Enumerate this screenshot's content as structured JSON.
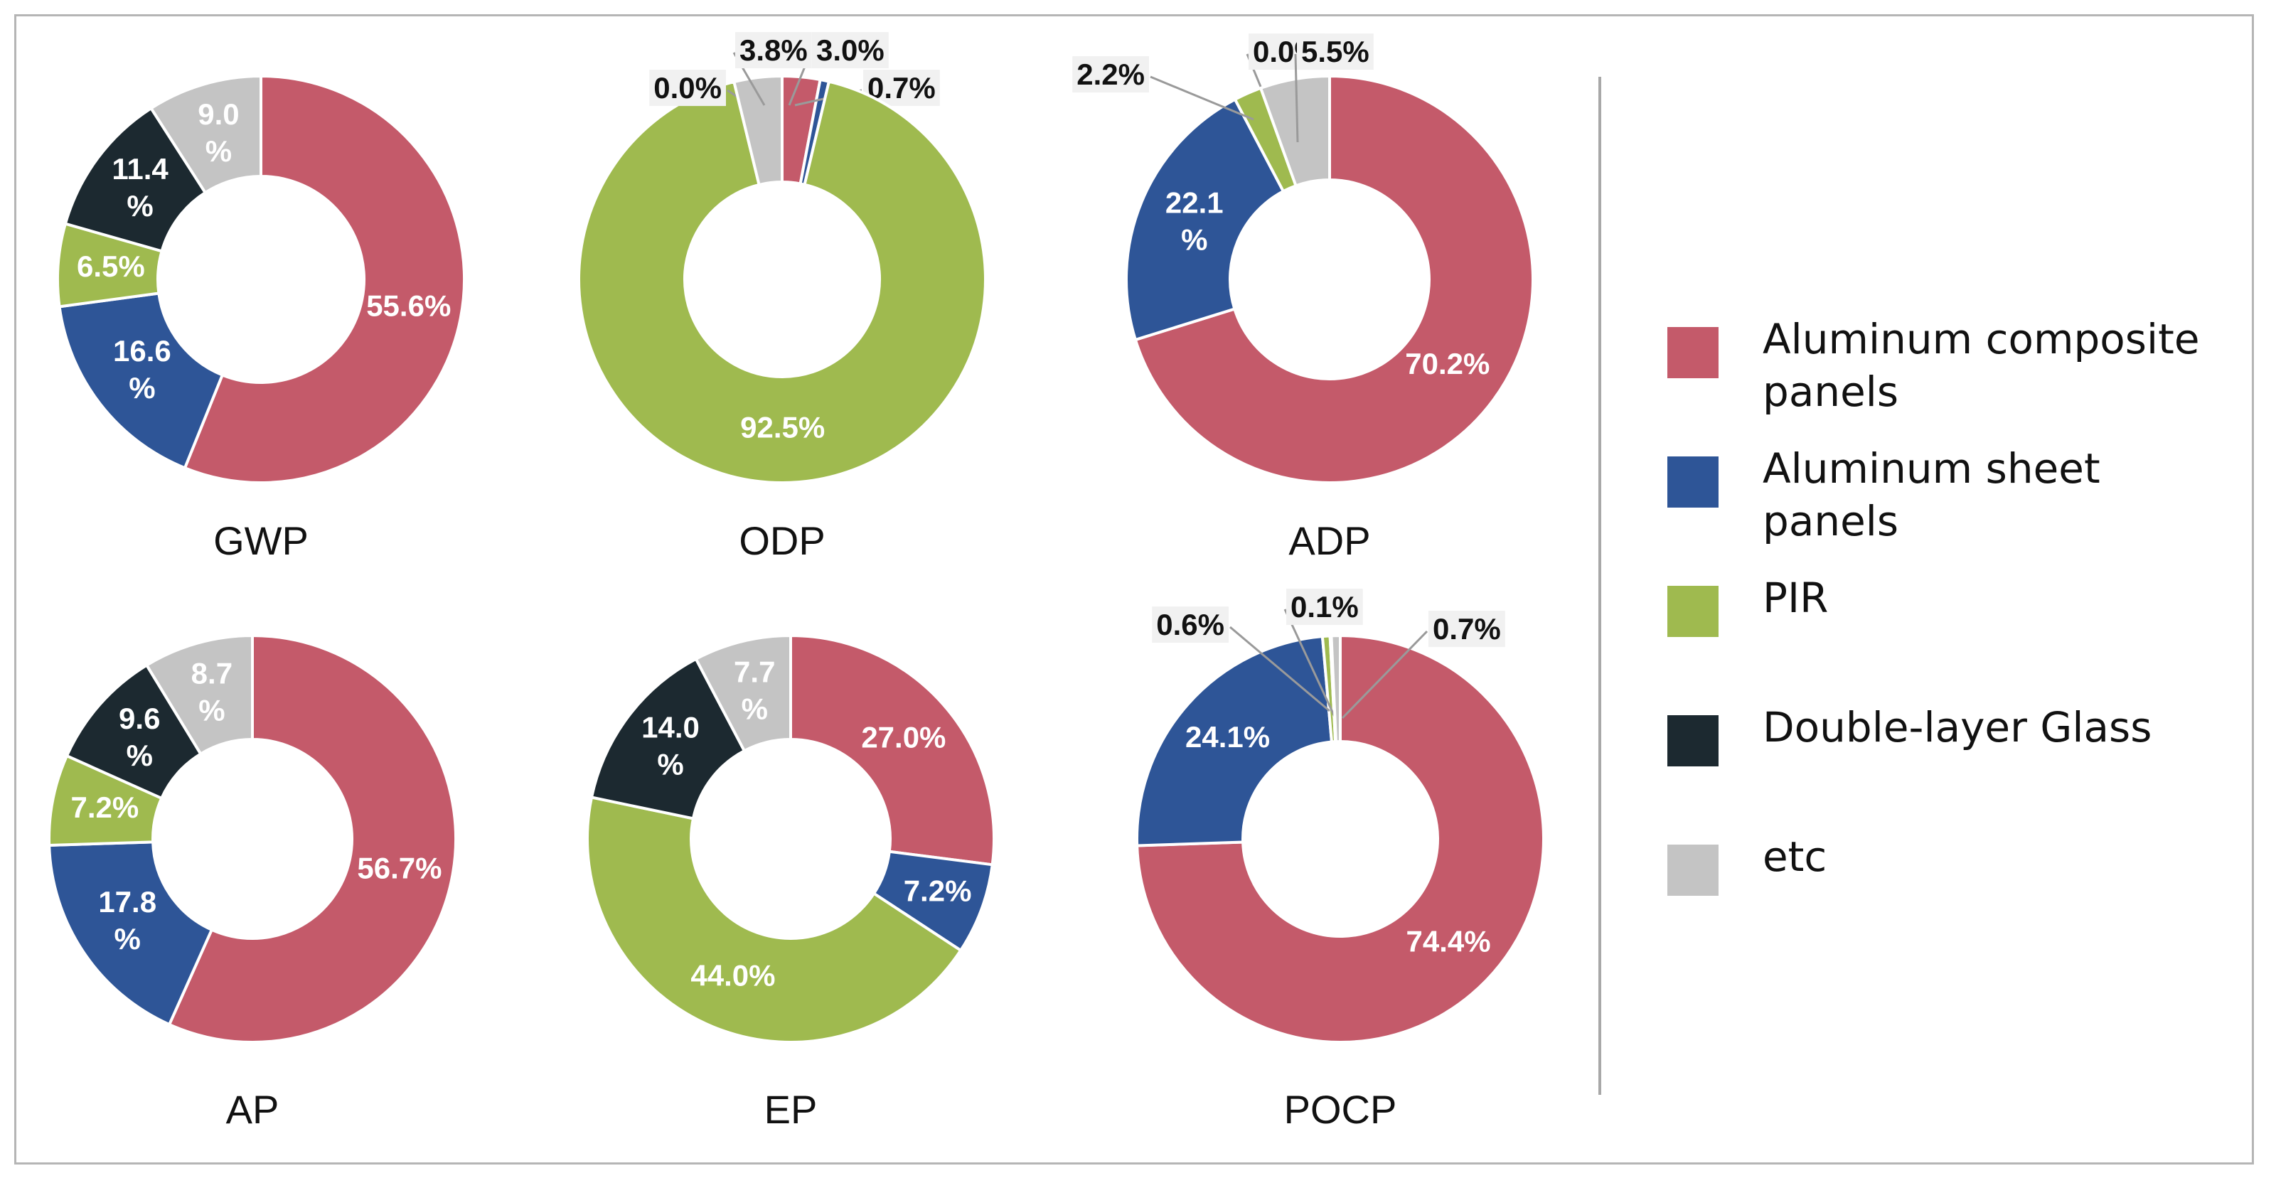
{
  "legend": {
    "items": [
      {
        "label": "Aluminum composite panels",
        "color": "#c45a6a"
      },
      {
        "label": "Aluminum sheet panels",
        "color": "#2e5597"
      },
      {
        "label": "PIR",
        "color": "#9fba4f"
      },
      {
        "label": "Double-layer Glass",
        "color": "#1c2930"
      },
      {
        "label": "etc",
        "color": "#c4c4c4"
      }
    ]
  },
  "chart_data": [
    {
      "type": "pie",
      "title": "GWP",
      "series": [
        {
          "name": "Aluminum composite panels",
          "value": 55.6,
          "label": "55.6%"
        },
        {
          "name": "Aluminum sheet panels",
          "value": 16.6,
          "label": "16.6 %"
        },
        {
          "name": "PIR",
          "value": 6.5,
          "label": "6.5%"
        },
        {
          "name": "Double-layer Glass",
          "value": 11.4,
          "label": "11.4 %"
        },
        {
          "name": "etc",
          "value": 9.0,
          "label": "9.0 %"
        }
      ]
    },
    {
      "type": "pie",
      "title": "ODP",
      "series": [
        {
          "name": "Aluminum composite panels",
          "value": 3.0,
          "label": "3.0%"
        },
        {
          "name": "Aluminum sheet panels",
          "value": 0.7,
          "label": "0.7%"
        },
        {
          "name": "PIR",
          "value": 92.5,
          "label": "92.5%"
        },
        {
          "name": "Double-layer Glass",
          "value": 0.0,
          "label": "0.0%"
        },
        {
          "name": "etc",
          "value": 3.8,
          "label": "3.8%"
        }
      ]
    },
    {
      "type": "pie",
      "title": "ADP",
      "series": [
        {
          "name": "Aluminum composite panels",
          "value": 70.2,
          "label": "70.2%"
        },
        {
          "name": "Aluminum sheet panels",
          "value": 22.1,
          "label": "22.1 %"
        },
        {
          "name": "PIR",
          "value": 2.2,
          "label": "2.2%"
        },
        {
          "name": "Double-layer Glass",
          "value": 0.0,
          "label": "0.0%"
        },
        {
          "name": "etc",
          "value": 5.5,
          "label": "5.5%"
        }
      ]
    },
    {
      "type": "pie",
      "title": "AP",
      "series": [
        {
          "name": "Aluminum composite panels",
          "value": 56.7,
          "label": "56.7%"
        },
        {
          "name": "Aluminum sheet panels",
          "value": 17.8,
          "label": "17.8 %"
        },
        {
          "name": "PIR",
          "value": 7.2,
          "label": "7.2%"
        },
        {
          "name": "Double-layer Glass",
          "value": 9.6,
          "label": "9.6 %"
        },
        {
          "name": "etc",
          "value": 8.7,
          "label": "8.7 %"
        }
      ]
    },
    {
      "type": "pie",
      "title": "EP",
      "series": [
        {
          "name": "Aluminum composite panels",
          "value": 27.0,
          "label": "27.0%"
        },
        {
          "name": "Aluminum sheet panels",
          "value": 7.2,
          "label": "7.2%"
        },
        {
          "name": "PIR",
          "value": 44.0,
          "label": "44.0%"
        },
        {
          "name": "Double-layer Glass",
          "value": 14.0,
          "label": "14.0 %"
        },
        {
          "name": "etc",
          "value": 7.7,
          "label": "7.7 %"
        }
      ]
    },
    {
      "type": "pie",
      "title": "POCP",
      "series": [
        {
          "name": "Aluminum composite panels",
          "value": 74.4,
          "label": "74.4%"
        },
        {
          "name": "Aluminum sheet panels",
          "value": 24.1,
          "label": "24.1%"
        },
        {
          "name": "PIR",
          "value": 0.6,
          "label": "0.6%"
        },
        {
          "name": "Double-layer Glass",
          "value": 0.1,
          "label": "0.1%"
        },
        {
          "name": "etc",
          "value": 0.7,
          "label": "0.7%"
        }
      ]
    }
  ]
}
